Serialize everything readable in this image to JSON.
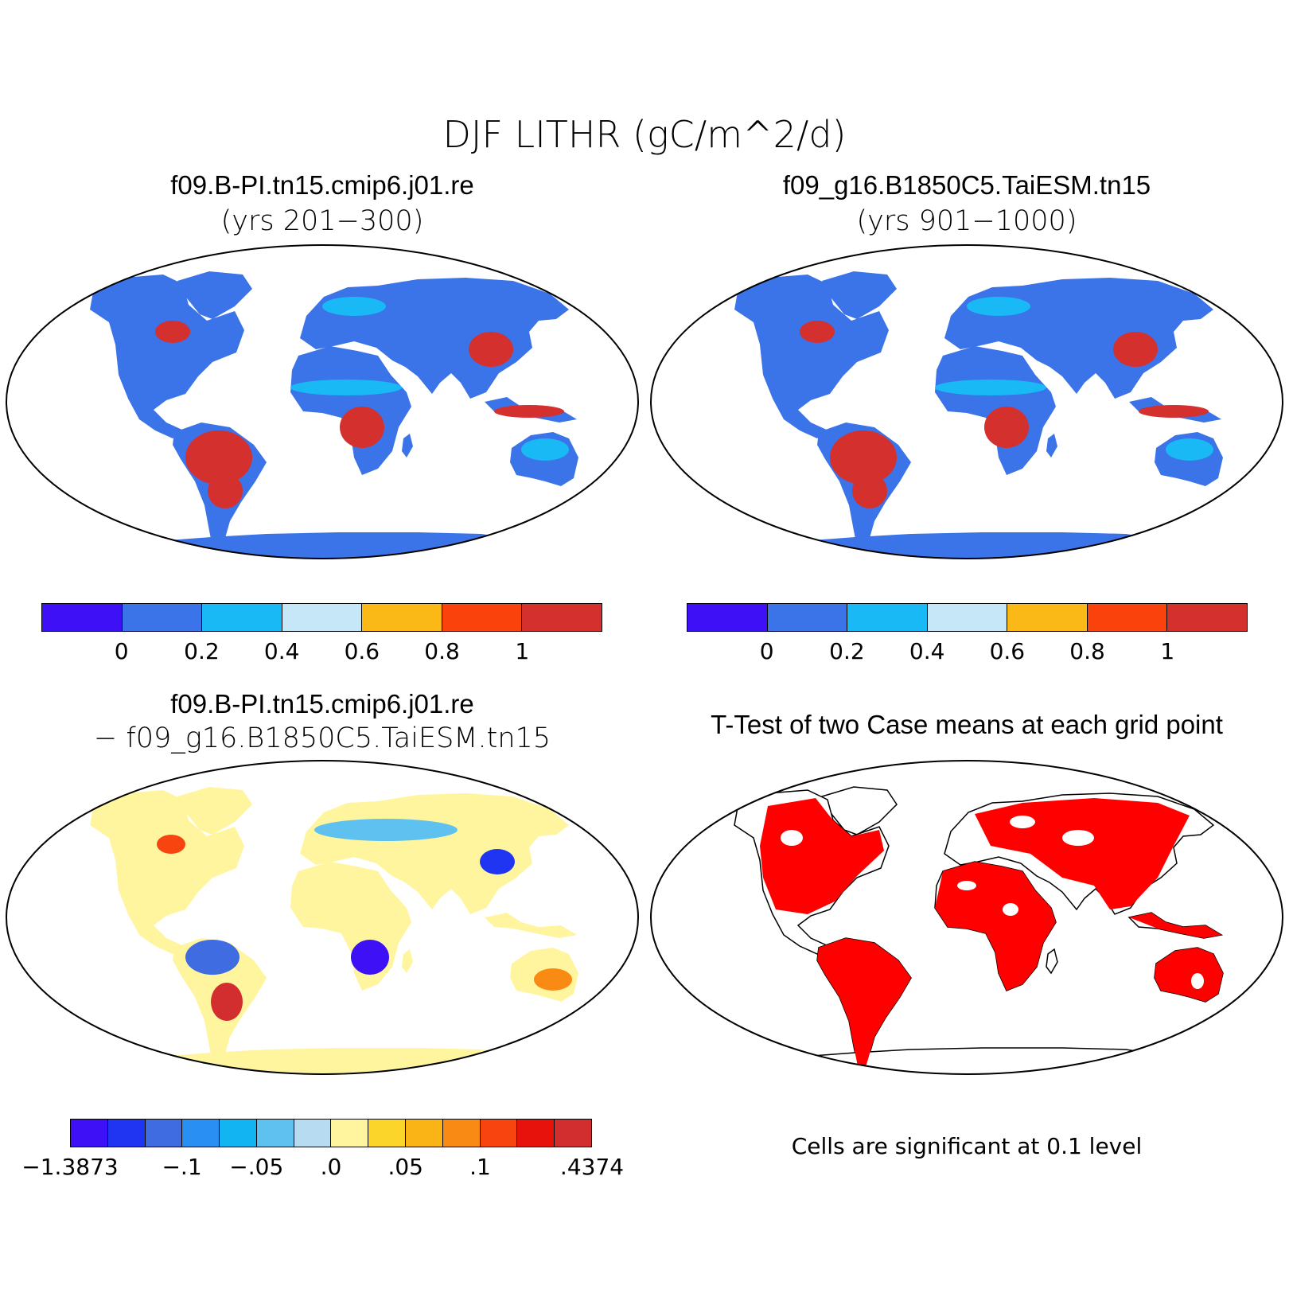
{
  "figure": {
    "title": "DJF LITHR (gC/m^2/d)"
  },
  "panels": {
    "case1": {
      "title": "f09.B-PI.tn15.cmip6.j01.re",
      "subtitle": "(yrs 201−300)"
    },
    "case2": {
      "title": "f09_g16.B1850C5.TaiESM.tn15",
      "subtitle": "(yrs 901−1000)"
    },
    "diff": {
      "title": "f09.B-PI.tn15.cmip6.j01.re",
      "subtitle": "− f09_g16.B1850C5.TaiESM.tn15"
    },
    "ttest": {
      "title": "T-Test of two Case means at each grid point",
      "note": "Cells are significant at 0.1 level"
    }
  },
  "colorbars": {
    "mean": {
      "colors": [
        "#3d10f5",
        "#3b73e8",
        "#19b9f5",
        "#c6e7f7",
        "#fbb918",
        "#fa420c",
        "#d4302e"
      ],
      "ticks": [
        "0",
        "0.2",
        "0.4",
        "0.6",
        "0.8",
        "1"
      ]
    },
    "diff": {
      "colors": [
        "#3d10f5",
        "#1f35f2",
        "#3f6ce0",
        "#2a8ff3",
        "#12b5f2",
        "#5ec1f0",
        "#b7dcf2",
        "#fff59e",
        "#fbd529",
        "#fbb415",
        "#f98b14",
        "#f8440f",
        "#e8120d",
        "#d32e2f"
      ],
      "ticks": [
        "−1.3873",
        "−.1",
        "−.05",
        ".0",
        ".05",
        ".1",
        ".4374"
      ]
    }
  },
  "map_fills": {
    "mean_land": "#3b73e8",
    "diff_land": "#fff59e",
    "significant": "#ff0000"
  }
}
